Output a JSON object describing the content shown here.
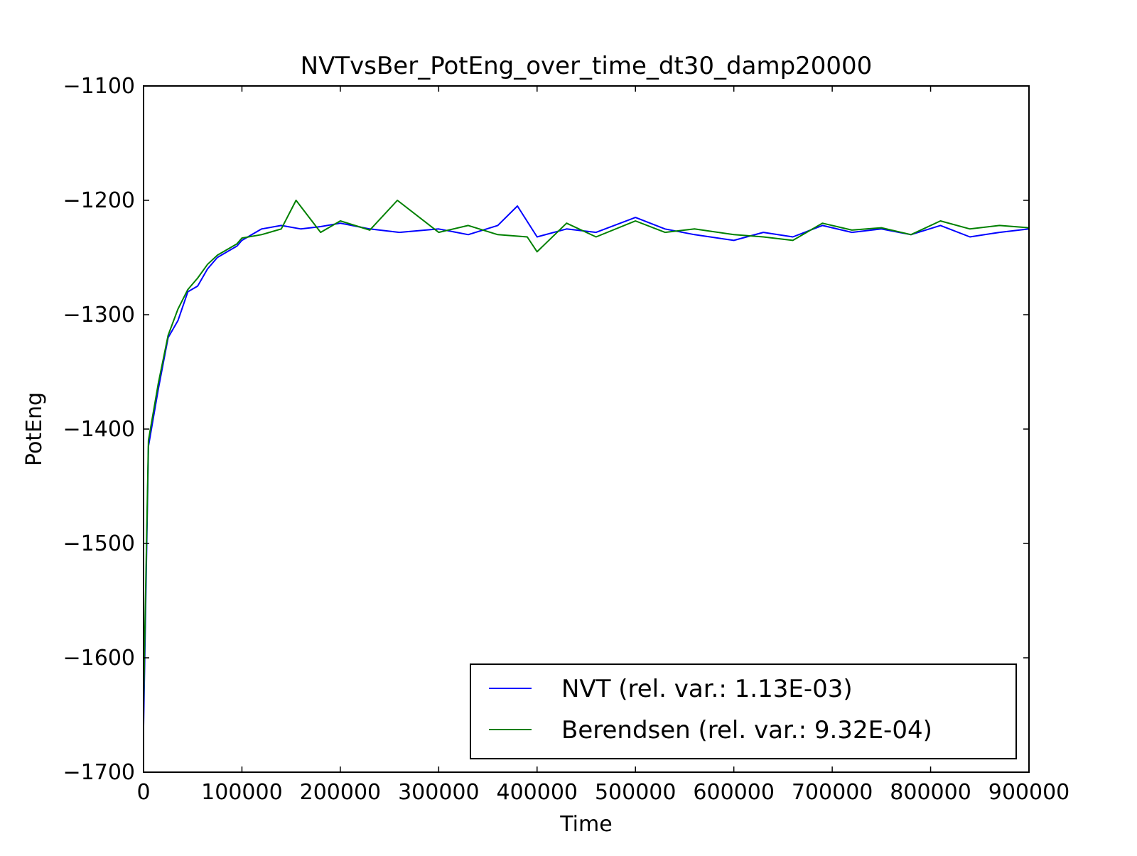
{
  "chart_data": {
    "type": "line",
    "title": "NVTvsBer_PotEng_over_time_dt30_damp20000",
    "xlabel": "Time",
    "ylabel": "PotEng",
    "xlim": [
      0,
      900000
    ],
    "ylim": [
      -1700,
      -1100
    ],
    "xticks": [
      "0",
      "100000",
      "200000",
      "300000",
      "400000",
      "500000",
      "600000",
      "700000",
      "800000",
      "900000"
    ],
    "yticks": [
      "−1100",
      "−1200",
      "−1300",
      "−1400",
      "−1500",
      "−1600",
      "−1700"
    ],
    "grid": false,
    "legend_position": "lower right",
    "series": [
      {
        "name": "NVT (rel. var.: 1.13E-03)",
        "color": "#0000ff",
        "x": [
          0,
          5000,
          15000,
          25000,
          35000,
          45000,
          55000,
          65000,
          75000,
          85000,
          95000,
          100000,
          120000,
          140000,
          160000,
          180000,
          200000,
          230000,
          260000,
          300000,
          330000,
          360000,
          380000,
          400000,
          430000,
          460000,
          500000,
          530000,
          560000,
          600000,
          630000,
          660000,
          690000,
          720000,
          750000,
          780000,
          810000,
          840000,
          870000,
          900000
        ],
        "y": [
          -1660,
          -1415,
          -1365,
          -1320,
          -1305,
          -1280,
          -1275,
          -1260,
          -1250,
          -1245,
          -1240,
          -1235,
          -1225,
          -1222,
          -1225,
          -1223,
          -1220,
          -1225,
          -1228,
          -1225,
          -1230,
          -1222,
          -1205,
          -1232,
          -1225,
          -1228,
          -1215,
          -1225,
          -1230,
          -1235,
          -1228,
          -1232,
          -1222,
          -1228,
          -1225,
          -1230,
          -1222,
          -1232,
          -1228,
          -1225
        ]
      },
      {
        "name": "Berendsen (rel. var.: 9.32E-04)",
        "color": "#008000",
        "x": [
          0,
          5000,
          15000,
          25000,
          35000,
          45000,
          55000,
          65000,
          75000,
          85000,
          95000,
          100000,
          120000,
          140000,
          155000,
          180000,
          200000,
          230000,
          258000,
          300000,
          330000,
          360000,
          390000,
          400000,
          430000,
          460000,
          500000,
          530000,
          560000,
          600000,
          630000,
          660000,
          690000,
          720000,
          750000,
          780000,
          810000,
          840000,
          870000,
          900000
        ],
        "y": [
          -1640,
          -1410,
          -1360,
          -1318,
          -1295,
          -1278,
          -1268,
          -1256,
          -1248,
          -1243,
          -1238,
          -1233,
          -1230,
          -1225,
          -1200,
          -1228,
          -1218,
          -1226,
          -1200,
          -1228,
          -1222,
          -1230,
          -1232,
          -1245,
          -1220,
          -1232,
          -1218,
          -1228,
          -1225,
          -1230,
          -1232,
          -1235,
          -1220,
          -1226,
          -1224,
          -1230,
          -1218,
          -1225,
          -1222,
          -1224
        ]
      }
    ]
  }
}
